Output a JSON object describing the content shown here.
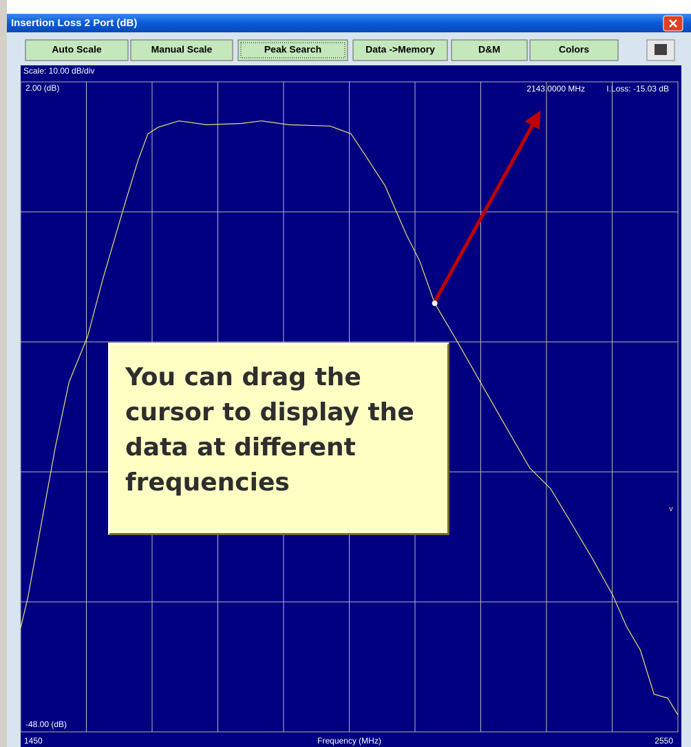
{
  "window": {
    "title": "Insertion Loss 2 Port (dB)",
    "buttons": [
      "Auto Scale",
      "Manual Scale",
      "Peak Search",
      "Data ->Memory",
      "D&M",
      "Colors"
    ]
  },
  "chart_data": {
    "type": "line",
    "scale_label": "Scale: 10.00 dB/div",
    "x_label": "Frequency (MHz)",
    "xlim": [
      1450,
      2550
    ],
    "xticks": [
      1450,
      2550
    ],
    "xgrid": [
      1560,
      1670,
      1780,
      1890,
      2000,
      2110,
      2220,
      2330,
      2440
    ],
    "ylim": [
      -48,
      2
    ],
    "yticks": [
      {
        "value": 2,
        "label": "2.00 (dB)"
      },
      {
        "value": -48,
        "label": "-48.00 (dB)"
      }
    ],
    "ygrid": [
      -8,
      -18,
      -28,
      -38
    ],
    "color": "#e8e070",
    "x": [
      1450,
      1462,
      1485,
      1508,
      1531,
      1562,
      1588,
      1623,
      1646,
      1663,
      1680,
      1715,
      1761,
      1819,
      1853,
      1899,
      1968,
      2003,
      2026,
      2060,
      2095,
      2118,
      2143,
      2176,
      2222,
      2268,
      2302,
      2337,
      2371,
      2406,
      2441,
      2464,
      2487,
      2510,
      2533,
      2550
    ],
    "values": [
      -40.0,
      -37.7,
      -31.9,
      -26.1,
      -21.1,
      -17.6,
      -13.1,
      -7.6,
      -4.1,
      -2.0,
      -1.5,
      -1.0,
      -1.3,
      -1.2,
      -1.0,
      -1.3,
      -1.4,
      -2.0,
      -3.6,
      -6.0,
      -9.7,
      -11.8,
      -15.03,
      -17.6,
      -21.3,
      -25.0,
      -27.7,
      -29.3,
      -31.9,
      -34.6,
      -37.5,
      -39.9,
      -41.7,
      -45.1,
      -45.4,
      -46.7
    ],
    "cursor": {
      "x": 2143,
      "y": -15.03,
      "frequency_label": "2143.0000 MHz",
      "loss_label": "I.Loss: -15.03 dB"
    },
    "marker_label": "v"
  },
  "callout": "You can drag the cursor to display the data at different frequencies"
}
